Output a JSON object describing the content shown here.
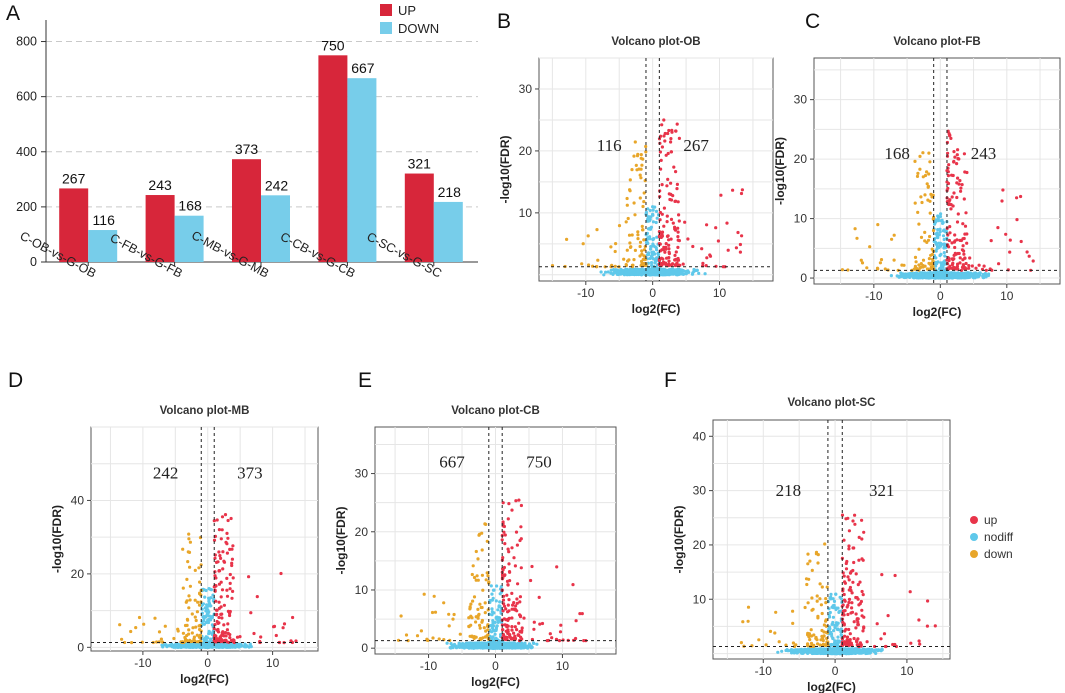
{
  "panel_letters": [
    "A",
    "B",
    "C",
    "D",
    "E",
    "F"
  ],
  "colors": {
    "up_bar": "#d7263a",
    "down_bar": "#77cdea",
    "up_point": "#e8344a",
    "down_point": "#e8a62a",
    "nodiff_point": "#5fc8ea",
    "grid": "#e6e6e6"
  },
  "chart_data": [
    {
      "id": "A",
      "type": "bar",
      "categories": [
        "C-OB-vs-G-OB",
        "C-FB-vs-G-FB",
        "C-MB-vs-G-MB",
        "C-CB-vs-G-CB",
        "C-SC-vs-G-SC"
      ],
      "series": [
        {
          "name": "UP",
          "values": [
            267,
            243,
            373,
            750,
            321
          ]
        },
        {
          "name": "DOWN",
          "values": [
            116,
            168,
            242,
            667,
            218
          ]
        }
      ],
      "ylim": [
        0,
        860
      ],
      "yticks": [
        0,
        200,
        400,
        600,
        800
      ],
      "legend": "top-right"
    },
    {
      "id": "B",
      "type": "scatter",
      "title": "Volcano plot-OB",
      "xlabel": "log2(FC)",
      "ylabel": "-log10(FDR)",
      "xlim": [
        -17,
        18
      ],
      "ylim": [
        -1,
        35
      ],
      "xticks": [
        -10,
        0,
        10
      ],
      "yticks": [
        10,
        20,
        30
      ],
      "down_count": "116",
      "up_count": "267"
    },
    {
      "id": "C",
      "type": "scatter",
      "title": "Volcano plot-FB",
      "xlabel": "log2(FC)",
      "ylabel": "-log10(FDR)",
      "xlim": [
        -19,
        18
      ],
      "ylim": [
        -1,
        37
      ],
      "xticks": [
        -10,
        0,
        10
      ],
      "yticks": [
        0,
        10,
        20,
        30
      ],
      "down_count": "168",
      "up_count": "243"
    },
    {
      "id": "D",
      "type": "scatter",
      "title": "Volcano plot-MB",
      "xlabel": "log2(FC)",
      "ylabel": "-log10(FDR)",
      "xlim": [
        -18,
        17
      ],
      "ylim": [
        -1,
        60
      ],
      "xticks": [
        -10,
        0,
        10
      ],
      "yticks": [
        0,
        20,
        40
      ],
      "down_count": "242",
      "up_count": "373"
    },
    {
      "id": "E",
      "type": "scatter",
      "title": "Volcano plot-CB",
      "xlabel": "log2(FC)",
      "ylabel": "-log10(FDR)",
      "xlim": [
        -18,
        18
      ],
      "ylim": [
        -1,
        38
      ],
      "xticks": [
        -10,
        0,
        10
      ],
      "yticks": [
        0,
        10,
        20,
        30
      ],
      "down_count": "667",
      "up_count": "750"
    },
    {
      "id": "F",
      "type": "scatter",
      "title": "Volcano plot-SC",
      "xlabel": "log2(FC)",
      "ylabel": "-log10(FDR)",
      "xlim": [
        -17,
        16
      ],
      "ylim": [
        -1,
        43
      ],
      "xticks": [
        -10,
        0,
        10
      ],
      "yticks": [
        10,
        20,
        30,
        40
      ],
      "down_count": "218",
      "up_count": "321"
    }
  ],
  "volcano_legend": [
    "up",
    "nodiff",
    "down"
  ]
}
